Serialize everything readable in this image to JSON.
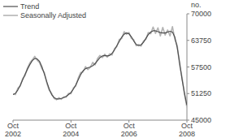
{
  "chart_data": {
    "type": "line",
    "y_label": "no.",
    "categories": [
      "Oct 2002",
      null,
      null,
      null,
      null,
      null,
      null,
      null,
      null,
      null,
      null,
      null,
      null,
      null,
      null,
      null,
      null,
      null,
      null,
      null,
      null,
      null,
      null,
      null,
      "Oct 2004",
      null,
      null,
      null,
      null,
      null,
      null,
      null,
      null,
      null,
      null,
      null,
      null,
      null,
      null,
      null,
      null,
      null,
      null,
      null,
      null,
      null,
      null,
      null,
      "Oct 2006",
      null,
      null,
      null,
      null,
      null,
      null,
      null,
      null,
      null,
      null,
      null,
      null,
      null,
      null,
      null,
      null,
      null,
      null,
      null,
      null,
      null,
      null,
      null,
      "Oct 2008"
    ],
    "series": [
      {
        "name": "Trend",
        "color": "#4d4d4d",
        "values": [
          51000,
          51300,
          52100,
          53200,
          54500,
          55800,
          57000,
          58100,
          59000,
          59500,
          59400,
          58800,
          57500,
          55800,
          54000,
          52300,
          51000,
          50300,
          50000,
          50000,
          50100,
          50300,
          50600,
          51000,
          51500,
          52300,
          53300,
          54500,
          55700,
          56600,
          57100,
          57300,
          57500,
          57800,
          58300,
          59000,
          59700,
          60100,
          60200,
          60100,
          60200,
          60700,
          61500,
          62500,
          63500,
          64500,
          65200,
          65500,
          65300,
          64600,
          63600,
          62800,
          62500,
          62700,
          63300,
          64200,
          65100,
          65700,
          66000,
          66000,
          65800,
          65600,
          65500,
          65500,
          65700,
          65900,
          65700,
          64500,
          62000,
          58500,
          54500,
          51300,
          48500
        ]
      },
      {
        "name": "Seasonally Adjusted",
        "color": "#b4b4b4",
        "values": [
          51200,
          51000,
          52500,
          53000,
          54800,
          55500,
          57300,
          58500,
          59200,
          60000,
          59100,
          58500,
          57000,
          56200,
          53700,
          52000,
          51300,
          50100,
          49800,
          50300,
          49900,
          50500,
          50400,
          51300,
          51200,
          52600,
          53000,
          54900,
          56200,
          56300,
          57600,
          56900,
          57400,
          58600,
          58000,
          59500,
          60200,
          59700,
          60500,
          59800,
          60600,
          60300,
          61800,
          62300,
          64000,
          64200,
          65800,
          65200,
          65600,
          64200,
          63900,
          62500,
          62800,
          62400,
          63600,
          64000,
          65600,
          65300,
          66900,
          65400,
          66700,
          64800,
          66800,
          65000,
          66200,
          64800,
          67000,
          64000,
          62500,
          57800,
          55000,
          51000,
          48000
        ]
      }
    ],
    "ylim": [
      45000,
      70000
    ],
    "yticks": [
      45000,
      51250,
      57500,
      63750,
      70000
    ],
    "legend": "top-left",
    "grid": false
  }
}
